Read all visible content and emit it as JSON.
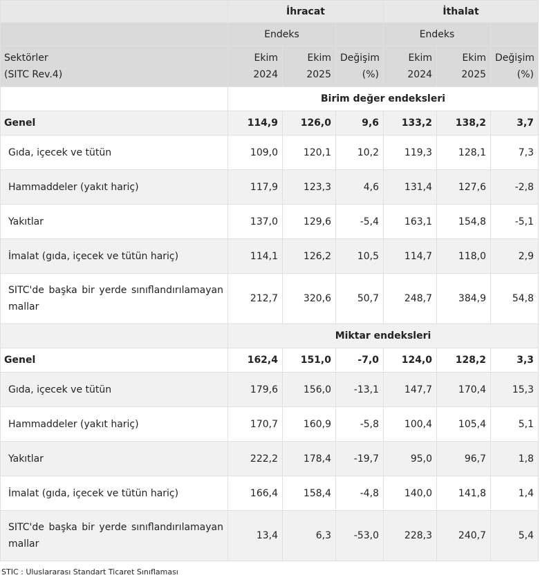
{
  "header": {
    "exports": "İhracat",
    "imports": "İthalat",
    "index_label": "Endeks",
    "sector_label_1": "Sektörler",
    "sector_label_2": "(SITC Rev.4)",
    "col_month_1": "Ekim",
    "col_year_1": "2024",
    "col_month_2": "Ekim",
    "col_year_2": "2025",
    "col_change_1": "Değişim",
    "col_change_2": "(%)"
  },
  "sections": [
    {
      "title": "Birim değer endeksleri",
      "rows": [
        {
          "label": "Genel",
          "values": [
            "114,9",
            "126,0",
            "9,6",
            "133,2",
            "138,2",
            "3,7"
          ]
        },
        {
          "label": "Gıda, içecek ve tütün",
          "values": [
            "109,0",
            "120,1",
            "10,2",
            "119,3",
            "128,1",
            "7,3"
          ]
        },
        {
          "label": "Hammaddeler (yakıt hariç)",
          "values": [
            "117,9",
            "123,3",
            "4,6",
            "131,4",
            "127,6",
            "-2,8"
          ]
        },
        {
          "label": "Yakıtlar",
          "values": [
            "137,0",
            "129,6",
            "-5,4",
            "163,1",
            "154,8",
            "-5,1"
          ]
        },
        {
          "label": "İmalat (gıda, içecek ve tütün hariç)",
          "values": [
            "114,1",
            "126,2",
            "10,5",
            "114,7",
            "118,0",
            "2,9"
          ]
        },
        {
          "label": "SITC'de başka bir yerde sınıflandırılamayan mallar",
          "values": [
            "212,7",
            "320,6",
            "50,7",
            "248,7",
            "384,9",
            "54,8"
          ]
        }
      ]
    },
    {
      "title": "Miktar endeksleri",
      "rows": [
        {
          "label": "Genel",
          "values": [
            "162,4",
            "151,0",
            "-7,0",
            "124,0",
            "128,2",
            "3,3"
          ]
        },
        {
          "label": "Gıda, içecek ve tütün",
          "values": [
            "179,6",
            "156,0",
            "-13,1",
            "147,7",
            "170,4",
            "15,3"
          ]
        },
        {
          "label": "Hammaddeler (yakıt hariç)",
          "values": [
            "170,7",
            "160,9",
            "-5,8",
            "100,4",
            "105,4",
            "5,1"
          ]
        },
        {
          "label": "Yakıtlar",
          "values": [
            "222,2",
            "178,4",
            "-19,7",
            "95,0",
            "96,7",
            "1,8"
          ]
        },
        {
          "label": "İmalat (gıda, içecek ve tütün hariç)",
          "values": [
            "166,4",
            "158,4",
            "-4,8",
            "140,0",
            "141,8",
            "1,4"
          ]
        },
        {
          "label": "SITC'de başka bir yerde sınıflandırılamayan mallar",
          "values": [
            "13,4",
            "6,3",
            "-53,0",
            "228,3",
            "240,7",
            "5,4"
          ]
        }
      ]
    }
  ],
  "footnote": "STIC : Uluslararası Standart Ticaret Sınıflaması"
}
